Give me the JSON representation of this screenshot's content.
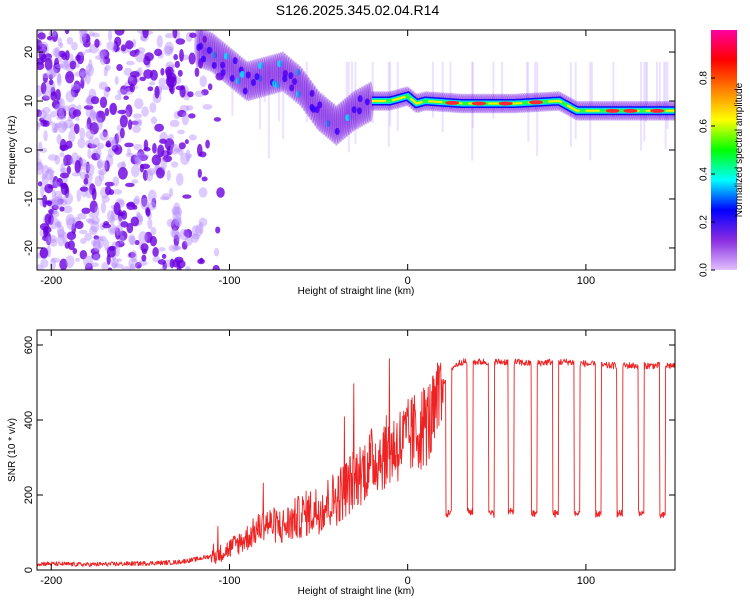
{
  "title": "S126.2025.345.02.04.R14",
  "colors": {
    "line": "#ee2222",
    "ridge_low": "#00d8ff",
    "ridge_high": "#ff2a2a",
    "noise_purple": "#6a00e0",
    "noise_light": "#b58cff"
  },
  "chart_data": [
    {
      "type": "heatmap",
      "title": "S126.2025.345.02.04.R14",
      "xlabel": "Height of straight line (km)",
      "ylabel": "Frequency (Hz)",
      "xlim": [
        -208,
        150
      ],
      "ylim": [
        -24.5,
        24.5
      ],
      "xticks": [
        -200,
        -100,
        0,
        100
      ],
      "yticks": [
        -20,
        -10,
        0,
        10,
        20
      ],
      "colorbar": {
        "label": "Normalized spectral amplitude",
        "range": [
          0,
          1
        ],
        "ticks": [
          0.0,
          0.2,
          0.4,
          0.6,
          0.8
        ],
        "colormap": [
          "#e0c0ff",
          "#8a2be2",
          "#0000ff",
          "#00ffff",
          "#00ff00",
          "#ffff00",
          "#ff8000",
          "#ff0000",
          "#ff00a0"
        ]
      },
      "ridge": [
        {
          "x": -118,
          "y": 21
        },
        {
          "x": -110,
          "y": 20
        },
        {
          "x": -100,
          "y": 17
        },
        {
          "x": -90,
          "y": 14
        },
        {
          "x": -80,
          "y": 15
        },
        {
          "x": -70,
          "y": 16
        },
        {
          "x": -60,
          "y": 13
        },
        {
          "x": -50,
          "y": 8
        },
        {
          "x": -40,
          "y": 5
        },
        {
          "x": -30,
          "y": 8
        },
        {
          "x": -20,
          "y": 10
        },
        {
          "x": -10,
          "y": 10
        },
        {
          "x": 0,
          "y": 11
        },
        {
          "x": 5,
          "y": 9.5
        },
        {
          "x": 10,
          "y": 10
        },
        {
          "x": 30,
          "y": 9.5
        },
        {
          "x": 60,
          "y": 9.5
        },
        {
          "x": 85,
          "y": 10
        },
        {
          "x": 95,
          "y": 8
        },
        {
          "x": 150,
          "y": 8
        }
      ],
      "noise_region_x": [
        -208,
        -100
      ]
    },
    {
      "type": "line",
      "xlabel": "Height of straight line (km)",
      "ylabel": "SNR (10 * v/v)",
      "xlim": [
        -208,
        150
      ],
      "ylim": [
        0,
        640
      ],
      "xticks": [
        -200,
        -100,
        0,
        100
      ],
      "yticks": [
        0,
        200,
        400,
        600
      ],
      "series": [
        {
          "name": "SNR",
          "x": [
            -208,
            -180,
            -150,
            -130,
            -120,
            -110,
            -100,
            -90,
            -80,
            -70,
            -60,
            -50,
            -40,
            -30,
            -20,
            -10,
            0,
            10,
            15,
            20,
            25,
            30,
            40,
            50,
            60,
            70,
            80,
            90,
            100,
            110,
            120,
            130,
            140,
            150
          ],
          "values": [
            15,
            12,
            15,
            18,
            25,
            35,
            60,
            90,
            130,
            120,
            150,
            170,
            200,
            250,
            300,
            330,
            360,
            400,
            420,
            500,
            540,
            555,
            555,
            555,
            555,
            550,
            555,
            555,
            550,
            545,
            545,
            545,
            545,
            545
          ]
        }
      ],
      "dropouts": [
        {
          "x": 23,
          "value": 150
        },
        {
          "x": 35,
          "value": 155
        },
        {
          "x": 47,
          "value": 150
        },
        {
          "x": 58,
          "value": 155
        },
        {
          "x": 71,
          "value": 150
        },
        {
          "x": 83,
          "value": 150
        },
        {
          "x": 95,
          "value": 150
        },
        {
          "x": 107,
          "value": 150
        },
        {
          "x": 119,
          "value": 150
        },
        {
          "x": 131,
          "value": 150
        },
        {
          "x": 143,
          "value": 145
        }
      ]
    }
  ]
}
